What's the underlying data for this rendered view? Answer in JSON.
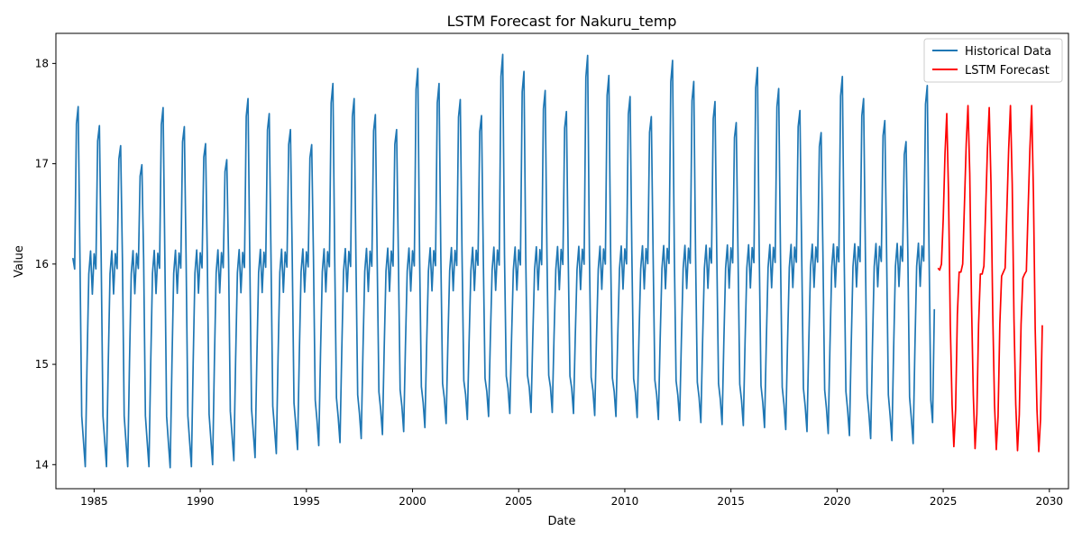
{
  "chart_data": {
    "type": "line",
    "title": "LSTM Forecast for Nakuru_temp",
    "xlabel": "Date",
    "ylabel": "Value",
    "xlim": [
      1983.2,
      2030.9
    ],
    "ylim": [
      13.76,
      18.3
    ],
    "x_ticks": [
      1985,
      1990,
      1995,
      2000,
      2005,
      2010,
      2015,
      2020,
      2025,
      2030
    ],
    "y_ticks": [
      14,
      15,
      16,
      17,
      18
    ],
    "grid": false,
    "legend_position": "top-right",
    "series": [
      {
        "name": "Historical Data",
        "color": "#1f77b4",
        "start_year": 1984.0,
        "step": 0.08333,
        "yearly_peaks": [
          17.57,
          17.38,
          17.18,
          16.99,
          17.56,
          17.37,
          17.2,
          17.04,
          17.65,
          17.5,
          17.34,
          17.19,
          17.8,
          17.65,
          17.49,
          17.34,
          17.95,
          17.8,
          17.64,
          17.48,
          18.09,
          17.92,
          17.73,
          17.52,
          18.08,
          17.88,
          17.67,
          17.47,
          18.03,
          17.82,
          17.62,
          17.41,
          17.96,
          17.75,
          17.53,
          17.31,
          17.87,
          17.65,
          17.43,
          17.22,
          17.78
        ],
        "yearly_troughs": [
          13.98,
          13.98,
          13.98,
          13.98,
          13.97,
          13.98,
          14.0,
          14.04,
          14.07,
          14.11,
          14.15,
          14.19,
          14.22,
          14.26,
          14.3,
          14.33,
          14.37,
          14.41,
          14.45,
          14.48,
          14.51,
          14.52,
          14.52,
          14.51,
          14.49,
          14.48,
          14.47,
          14.45,
          14.44,
          14.42,
          14.4,
          14.39,
          14.37,
          14.35,
          14.33,
          14.31,
          14.29,
          14.26,
          14.24,
          14.21,
          14.17
        ],
        "values": []
      },
      {
        "name": "LSTM Forecast",
        "color": "#ff0000",
        "start_year": 2024.75,
        "step": 0.08333,
        "values": [
          15.96,
          15.94,
          16.0,
          16.45,
          17.1,
          17.5,
          16.7,
          15.4,
          14.6,
          14.18,
          14.55,
          15.5,
          15.92,
          15.92,
          16.0,
          16.6,
          17.2,
          17.58,
          16.9,
          15.6,
          14.7,
          14.16,
          14.5,
          15.4,
          15.9,
          15.9,
          15.98,
          16.55,
          17.15,
          17.56,
          16.8,
          15.5,
          14.6,
          14.15,
          14.48,
          15.4,
          15.88,
          15.92,
          15.96,
          16.55,
          17.15,
          17.58,
          16.8,
          15.45,
          14.6,
          14.14,
          14.5,
          15.4,
          15.86,
          15.9,
          15.93,
          16.55,
          17.15,
          17.58,
          16.7,
          15.35,
          14.55,
          14.13,
          14.45,
          15.39
        ]
      }
    ]
  }
}
